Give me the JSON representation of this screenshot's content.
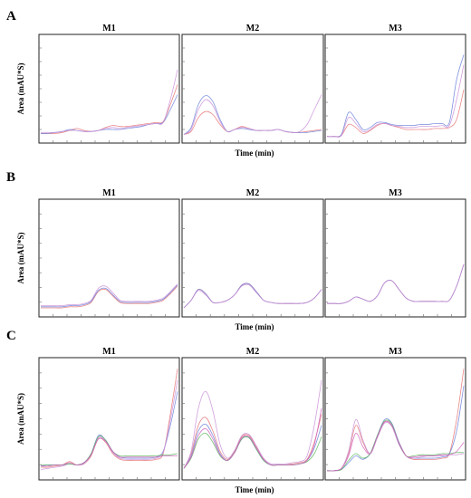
{
  "chart_data": [
    {
      "type": "line",
      "panel": "A",
      "ylabel": "Area (mAU*S)",
      "xlabel": "Time (min)",
      "grid": false,
      "subplots": [
        {
          "title": "M1",
          "series": [
            {
              "color": "#e57373",
              "values": [
                0.06,
                0.06,
                0.06,
                0.07,
                0.09,
                0.11,
                0.09,
                0.08,
                0.09,
                0.12,
                0.14,
                0.13,
                0.13,
                0.14,
                0.15,
                0.16,
                0.17,
                0.18,
                0.35,
                0.55
              ]
            },
            {
              "color": "#6a7fd8",
              "values": [
                0.06,
                0.06,
                0.07,
                0.08,
                0.1,
                0.09,
                0.08,
                0.08,
                0.09,
                0.1,
                0.1,
                0.1,
                0.11,
                0.12,
                0.13,
                0.15,
                0.16,
                0.17,
                0.3,
                0.45
              ]
            },
            {
              "color": "#c98fd8",
              "values": [
                0.07,
                0.07,
                0.07,
                0.08,
                0.09,
                0.09,
                0.08,
                0.08,
                0.09,
                0.11,
                0.12,
                0.11,
                0.12,
                0.13,
                0.14,
                0.15,
                0.16,
                0.17,
                0.4,
                0.7
              ]
            }
          ]
        },
        {
          "title": "M2",
          "series": [
            {
              "color": "#e57373",
              "values": [
                0.05,
                0.08,
                0.22,
                0.28,
                0.25,
                0.15,
                0.08,
                0.1,
                0.13,
                0.11,
                0.09,
                0.09,
                0.09,
                0.1,
                0.08,
                0.07,
                0.07,
                0.08,
                0.09,
                0.1
              ]
            },
            {
              "color": "#6a7fd8",
              "values": [
                0.05,
                0.12,
                0.35,
                0.44,
                0.38,
                0.2,
                0.08,
                0.1,
                0.11,
                0.1,
                0.09,
                0.09,
                0.09,
                0.1,
                0.08,
                0.07,
                0.07,
                0.07,
                0.08,
                0.09
              ]
            },
            {
              "color": "#c98fd8",
              "values": [
                0.05,
                0.1,
                0.3,
                0.4,
                0.34,
                0.18,
                0.08,
                0.1,
                0.12,
                0.11,
                0.09,
                0.09,
                0.09,
                0.1,
                0.08,
                0.07,
                0.08,
                0.15,
                0.3,
                0.45
              ]
            }
          ]
        },
        {
          "title": "M3",
          "series": [
            {
              "color": "#e57373",
              "values": [
                0.03,
                0.03,
                0.04,
                0.15,
                0.12,
                0.06,
                0.09,
                0.14,
                0.16,
                0.14,
                0.12,
                0.1,
                0.1,
                0.1,
                0.1,
                0.11,
                0.11,
                0.12,
                0.2,
                0.5
              ]
            },
            {
              "color": "#6a7fd8",
              "values": [
                0.03,
                0.03,
                0.05,
                0.27,
                0.2,
                0.1,
                0.12,
                0.17,
                0.17,
                0.15,
                0.14,
                0.14,
                0.14,
                0.15,
                0.15,
                0.16,
                0.16,
                0.17,
                0.6,
                0.85
              ]
            },
            {
              "color": "#c98fd8",
              "values": [
                0.03,
                0.03,
                0.04,
                0.22,
                0.16,
                0.08,
                0.1,
                0.15,
                0.16,
                0.14,
                0.13,
                0.12,
                0.12,
                0.13,
                0.13,
                0.13,
                0.14,
                0.14,
                0.4,
                0.75
              ]
            }
          ]
        }
      ]
    },
    {
      "type": "line",
      "panel": "B",
      "ylabel": "Area (mAU*S)",
      "xlabel": "Time (min)",
      "grid": false,
      "subplots": [
        {
          "title": "M1",
          "series": [
            {
              "color": "#e57373",
              "values": [
                0.05,
                0.05,
                0.05,
                0.05,
                0.06,
                0.06,
                0.07,
                0.1,
                0.2,
                0.22,
                0.16,
                0.1,
                0.09,
                0.09,
                0.09,
                0.09,
                0.1,
                0.12,
                0.18,
                0.25
              ]
            },
            {
              "color": "#6a7fd8",
              "values": [
                0.06,
                0.06,
                0.06,
                0.06,
                0.07,
                0.07,
                0.08,
                0.11,
                0.21,
                0.23,
                0.17,
                0.11,
                0.1,
                0.1,
                0.1,
                0.1,
                0.11,
                0.13,
                0.19,
                0.26
              ]
            },
            {
              "color": "#c98fd8",
              "values": [
                0.07,
                0.07,
                0.07,
                0.07,
                0.08,
                0.08,
                0.09,
                0.12,
                0.23,
                0.25,
                0.19,
                0.12,
                0.11,
                0.11,
                0.11,
                0.11,
                0.12,
                0.14,
                0.2,
                0.27
              ]
            }
          ]
        },
        {
          "title": "M2",
          "series": [
            {
              "color": "#e57373",
              "values": [
                0.05,
                0.12,
                0.22,
                0.18,
                0.1,
                0.1,
                0.12,
                0.17,
                0.26,
                0.27,
                0.2,
                0.12,
                0.1,
                0.09,
                0.09,
                0.09,
                0.09,
                0.1,
                0.14,
                0.22
              ]
            },
            {
              "color": "#6a7fd8",
              "values": [
                0.05,
                0.12,
                0.22,
                0.18,
                0.1,
                0.1,
                0.12,
                0.17,
                0.26,
                0.27,
                0.2,
                0.12,
                0.1,
                0.09,
                0.09,
                0.09,
                0.09,
                0.1,
                0.14,
                0.22
              ]
            },
            {
              "color": "#c98fd8",
              "values": [
                0.05,
                0.12,
                0.21,
                0.17,
                0.1,
                0.1,
                0.12,
                0.17,
                0.25,
                0.26,
                0.19,
                0.12,
                0.1,
                0.09,
                0.09,
                0.09,
                0.09,
                0.1,
                0.14,
                0.22
              ]
            }
          ]
        },
        {
          "title": "M3",
          "series": [
            {
              "color": "#e57373",
              "values": [
                0.09,
                0.09,
                0.09,
                0.11,
                0.15,
                0.13,
                0.11,
                0.16,
                0.28,
                0.3,
                0.22,
                0.14,
                0.11,
                0.11,
                0.11,
                0.11,
                0.11,
                0.12,
                0.25,
                0.45
              ]
            },
            {
              "color": "#6a7fd8",
              "values": [
                0.09,
                0.09,
                0.09,
                0.11,
                0.15,
                0.13,
                0.11,
                0.16,
                0.28,
                0.3,
                0.22,
                0.14,
                0.11,
                0.11,
                0.11,
                0.11,
                0.11,
                0.12,
                0.25,
                0.45
              ]
            },
            {
              "color": "#c98fd8",
              "values": [
                0.09,
                0.09,
                0.09,
                0.11,
                0.15,
                0.13,
                0.11,
                0.16,
                0.28,
                0.3,
                0.22,
                0.14,
                0.11,
                0.11,
                0.11,
                0.11,
                0.11,
                0.12,
                0.25,
                0.45
              ]
            }
          ]
        }
      ]
    },
    {
      "type": "line",
      "panel": "C",
      "ylabel": "Area (mAU*S)",
      "xlabel": "Time (min)",
      "grid": false,
      "subplots": [
        {
          "title": "M1",
          "series": [
            {
              "color": "#e57373",
              "values": [
                0.08,
                0.08,
                0.09,
                0.1,
                0.13,
                0.1,
                0.11,
                0.18,
                0.33,
                0.3,
                0.2,
                0.15,
                0.14,
                0.14,
                0.14,
                0.14,
                0.15,
                0.2,
                0.55,
                0.95
              ]
            },
            {
              "color": "#6a7fd8",
              "values": [
                0.09,
                0.1,
                0.1,
                0.1,
                0.11,
                0.1,
                0.12,
                0.2,
                0.36,
                0.32,
                0.22,
                0.17,
                0.16,
                0.16,
                0.16,
                0.16,
                0.17,
                0.22,
                0.45,
                0.75
              ]
            },
            {
              "color": "#c98fd8",
              "values": [
                0.06,
                0.07,
                0.08,
                0.09,
                0.11,
                0.1,
                0.11,
                0.19,
                0.34,
                0.31,
                0.21,
                0.16,
                0.15,
                0.15,
                0.15,
                0.15,
                0.16,
                0.21,
                0.5,
                0.85
              ]
            },
            {
              "color": "#5bb55b",
              "values": [
                0.1,
                0.1,
                0.1,
                0.1,
                0.11,
                0.1,
                0.12,
                0.2,
                0.35,
                0.32,
                0.22,
                0.18,
                0.18,
                0.18,
                0.18,
                0.18,
                0.18,
                0.19,
                0.19,
                0.2
              ]
            },
            {
              "color": "#d060c0",
              "values": [
                0.09,
                0.09,
                0.1,
                0.1,
                0.12,
                0.1,
                0.12,
                0.19,
                0.33,
                0.31,
                0.22,
                0.17,
                0.17,
                0.17,
                0.17,
                0.17,
                0.17,
                0.18,
                0.18,
                0.18
              ]
            }
          ]
        },
        {
          "title": "M2",
          "series": [
            {
              "color": "#e57373",
              "values": [
                0.07,
                0.2,
                0.45,
                0.52,
                0.4,
                0.22,
                0.15,
                0.22,
                0.35,
                0.36,
                0.26,
                0.15,
                0.1,
                0.1,
                0.1,
                0.11,
                0.12,
                0.15,
                0.3,
                0.55
              ]
            },
            {
              "color": "#6a7fd8",
              "values": [
                0.07,
                0.18,
                0.4,
                0.46,
                0.36,
                0.2,
                0.14,
                0.21,
                0.33,
                0.34,
                0.24,
                0.14,
                0.1,
                0.1,
                0.1,
                0.1,
                0.11,
                0.14,
                0.25,
                0.45
              ]
            },
            {
              "color": "#c98fd8",
              "values": [
                0.07,
                0.22,
                0.6,
                0.75,
                0.58,
                0.28,
                0.16,
                0.23,
                0.36,
                0.37,
                0.27,
                0.16,
                0.11,
                0.11,
                0.11,
                0.12,
                0.13,
                0.18,
                0.45,
                0.85
              ]
            },
            {
              "color": "#5bb55b",
              "values": [
                0.07,
                0.16,
                0.33,
                0.38,
                0.3,
                0.18,
                0.14,
                0.21,
                0.33,
                0.34,
                0.24,
                0.14,
                0.1,
                0.1,
                0.1,
                0.1,
                0.11,
                0.13,
                0.2,
                0.35
              ]
            },
            {
              "color": "#d060c0",
              "values": [
                0.07,
                0.17,
                0.36,
                0.42,
                0.33,
                0.19,
                0.14,
                0.21,
                0.34,
                0.35,
                0.25,
                0.15,
                0.1,
                0.1,
                0.1,
                0.1,
                0.11,
                0.14,
                0.28,
                0.6
              ]
            }
          ]
        },
        {
          "title": "M3",
          "series": [
            {
              "color": "#e57373",
              "values": [
                0.05,
                0.05,
                0.07,
                0.2,
                0.45,
                0.3,
                0.2,
                0.35,
                0.48,
                0.45,
                0.3,
                0.18,
                0.15,
                0.15,
                0.15,
                0.15,
                0.16,
                0.2,
                0.5,
                0.95
              ]
            },
            {
              "color": "#6a7fd8",
              "values": [
                0.05,
                0.05,
                0.06,
                0.12,
                0.18,
                0.15,
                0.2,
                0.36,
                0.5,
                0.47,
                0.3,
                0.18,
                0.16,
                0.16,
                0.16,
                0.16,
                0.17,
                0.2,
                0.4,
                0.8
              ]
            },
            {
              "color": "#c98fd8",
              "values": [
                0.05,
                0.05,
                0.07,
                0.22,
                0.5,
                0.32,
                0.2,
                0.34,
                0.47,
                0.44,
                0.28,
                0.18,
                0.16,
                0.17,
                0.18,
                0.18,
                0.18,
                0.19,
                0.19,
                0.2
              ]
            },
            {
              "color": "#5bb55b",
              "values": [
                0.05,
                0.05,
                0.06,
                0.14,
                0.2,
                0.16,
                0.2,
                0.36,
                0.49,
                0.46,
                0.29,
                0.18,
                0.18,
                0.19,
                0.19,
                0.19,
                0.2,
                0.2,
                0.21,
                0.21
              ]
            },
            {
              "color": "#d060c0",
              "values": [
                0.05,
                0.05,
                0.07,
                0.18,
                0.38,
                0.26,
                0.2,
                0.35,
                0.48,
                0.45,
                0.29,
                0.18,
                0.17,
                0.18,
                0.18,
                0.18,
                0.19,
                0.19,
                0.22,
                0.3
              ]
            }
          ]
        }
      ]
    }
  ]
}
